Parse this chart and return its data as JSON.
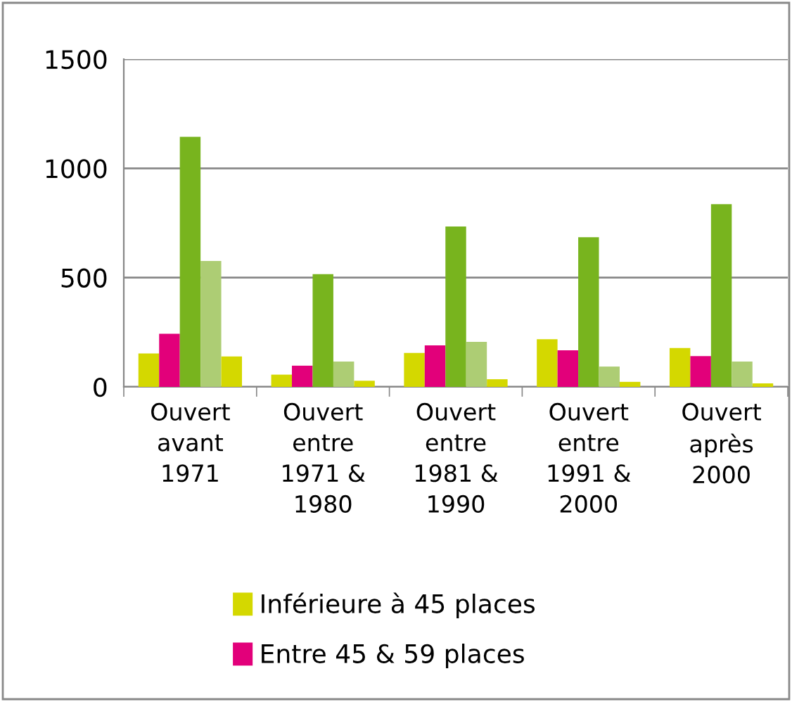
{
  "chart_data": {
    "type": "bar",
    "categories": [
      "Ouvert\navant\n1971",
      "Ouvert\nentre\n1971 &\n1980",
      "Ouvert\nentre\n1981 &\n1990",
      "Ouvert\nentre\n1991 &\n2000",
      "Ouvert\naprès\n2000"
    ],
    "series": [
      {
        "name": "Inférieure à 45 places",
        "color": "#d4d800",
        "values": [
          153,
          56,
          155,
          218,
          178
        ]
      },
      {
        "name": "Entre 45 & 59 places",
        "color": "#e2007a",
        "values": [
          243,
          97,
          190,
          167,
          141
        ]
      },
      {
        "color": "#78b41e",
        "values": [
          1144,
          516,
          734,
          685,
          836
        ]
      },
      {
        "color": "#adcd74",
        "values": [
          576,
          116,
          206,
          93,
          116
        ]
      },
      {
        "color": "#d4d800",
        "values": [
          139,
          28,
          35,
          23,
          16
        ]
      }
    ],
    "ylim": [
      0,
      1500
    ],
    "yticks": [
      0,
      500,
      1000,
      1500
    ],
    "grid": "y",
    "legend": "bottom"
  }
}
